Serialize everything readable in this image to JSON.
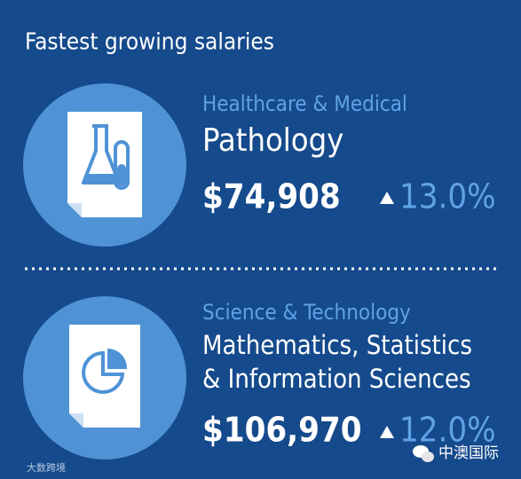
{
  "header": {
    "title": "Fastest growing salaries"
  },
  "items": [
    {
      "category": "Healthcare & Medical",
      "job": [
        "Pathology"
      ],
      "salary": "$74,908",
      "growth": "13.0%"
    },
    {
      "category": "Science & Technology",
      "job": [
        "Mathematics, Statistics",
        "& Information Sciences"
      ],
      "salary": "$106,970",
      "growth": "12.0%"
    }
  ],
  "watermarks": {
    "left": "大数跨境",
    "right": "中澳国际"
  }
}
